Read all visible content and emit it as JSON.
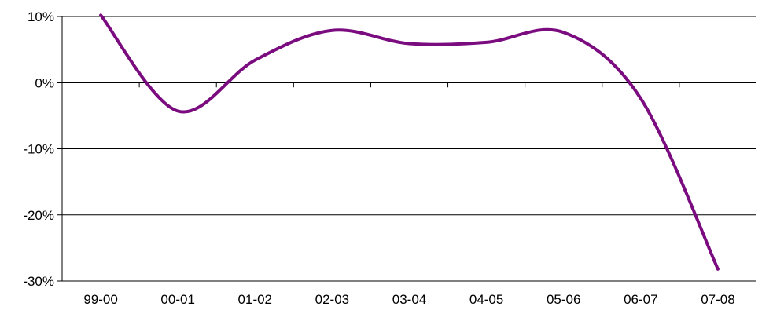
{
  "chart_data": {
    "type": "line",
    "categories": [
      "99-00",
      "00-01",
      "01-02",
      "02-03",
      "03-04",
      "04-05",
      "05-06",
      "06-07",
      "07-08"
    ],
    "series": [
      {
        "values": [
          10.2,
          -4.3,
          3.4,
          7.9,
          5.9,
          6.1,
          7.6,
          -2.4,
          -28.2
        ]
      }
    ],
    "y_ticks": [
      10,
      0,
      -10,
      -20,
      -30
    ],
    "y_tick_labels": [
      "10%",
      "0%",
      "-10%",
      "-20%",
      "-30%"
    ],
    "ylim": [
      -30,
      10
    ],
    "grid": true,
    "colors": {
      "line": "#7B0C80"
    }
  }
}
